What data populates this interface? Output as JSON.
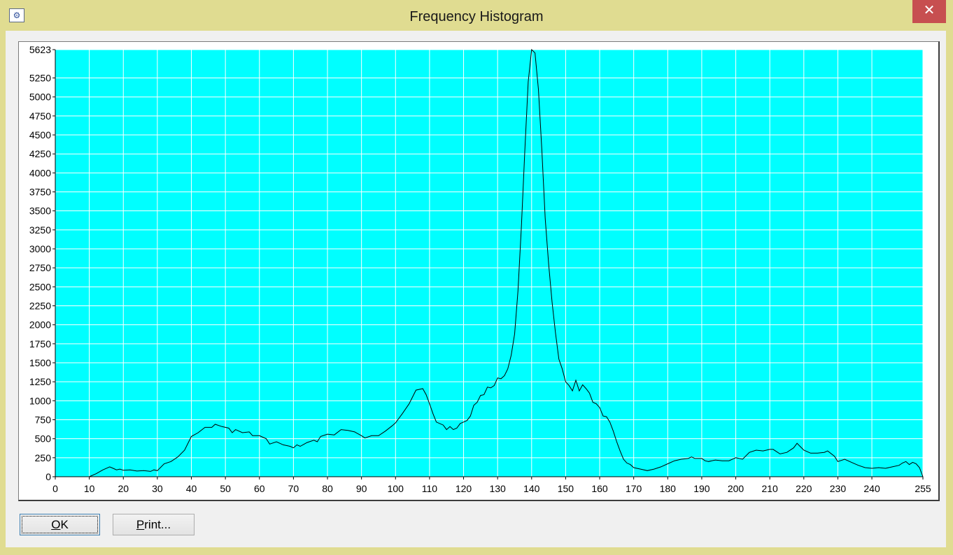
{
  "window": {
    "title": "Frequency Histogram",
    "close_glyph": "✕",
    "icon": "app-icon"
  },
  "buttons": {
    "ok_accel": "O",
    "ok_rest": "K",
    "print_accel": "P",
    "print_rest": "rint..."
  },
  "colors": {
    "plot_background": "#00ffff",
    "grid": "#ffffff",
    "line": "#000000"
  },
  "chart_data": {
    "type": "line",
    "title": "",
    "xlabel": "",
    "ylabel": "",
    "xlim": [
      0,
      255
    ],
    "ylim": [
      0,
      5623
    ],
    "grid": true,
    "x_ticks": [
      0,
      10,
      20,
      30,
      40,
      50,
      60,
      70,
      80,
      90,
      100,
      110,
      120,
      130,
      140,
      150,
      160,
      170,
      180,
      190,
      200,
      210,
      220,
      230,
      240,
      255
    ],
    "y_ticks": [
      0,
      250,
      500,
      750,
      1000,
      1250,
      1500,
      1750,
      2000,
      2250,
      2500,
      2750,
      3000,
      3250,
      3500,
      3750,
      4000,
      4250,
      4500,
      4750,
      5000,
      5250,
      5623
    ],
    "series": [
      {
        "points": [
          [
            0,
            0
          ],
          [
            10,
            0
          ],
          [
            12,
            40
          ],
          [
            14,
            90
          ],
          [
            16,
            130
          ],
          [
            17,
            110
          ],
          [
            18,
            90
          ],
          [
            19,
            100
          ],
          [
            20,
            85
          ],
          [
            22,
            90
          ],
          [
            24,
            75
          ],
          [
            26,
            80
          ],
          [
            28,
            70
          ],
          [
            29,
            90
          ],
          [
            30,
            80
          ],
          [
            32,
            170
          ],
          [
            34,
            200
          ],
          [
            36,
            260
          ],
          [
            38,
            350
          ],
          [
            40,
            530
          ],
          [
            42,
            580
          ],
          [
            44,
            650
          ],
          [
            46,
            650
          ],
          [
            47,
            690
          ],
          [
            49,
            660
          ],
          [
            51,
            640
          ],
          [
            52,
            580
          ],
          [
            53,
            620
          ],
          [
            55,
            580
          ],
          [
            57,
            590
          ],
          [
            58,
            540
          ],
          [
            60,
            540
          ],
          [
            61,
            520
          ],
          [
            62,
            500
          ],
          [
            63,
            430
          ],
          [
            65,
            460
          ],
          [
            67,
            420
          ],
          [
            69,
            400
          ],
          [
            70,
            380
          ],
          [
            71,
            420
          ],
          [
            72,
            400
          ],
          [
            74,
            450
          ],
          [
            76,
            480
          ],
          [
            77,
            460
          ],
          [
            78,
            530
          ],
          [
            80,
            560
          ],
          [
            82,
            550
          ],
          [
            84,
            620
          ],
          [
            86,
            610
          ],
          [
            88,
            590
          ],
          [
            90,
            540
          ],
          [
            91,
            510
          ],
          [
            93,
            540
          ],
          [
            95,
            540
          ],
          [
            97,
            600
          ],
          [
            99,
            670
          ],
          [
            100,
            710
          ],
          [
            102,
            830
          ],
          [
            104,
            960
          ],
          [
            106,
            1140
          ],
          [
            108,
            1160
          ],
          [
            109,
            1080
          ],
          [
            110,
            960
          ],
          [
            111,
            830
          ],
          [
            112,
            720
          ],
          [
            114,
            680
          ],
          [
            115,
            620
          ],
          [
            116,
            660
          ],
          [
            117,
            620
          ],
          [
            118,
            640
          ],
          [
            119,
            700
          ],
          [
            120,
            720
          ],
          [
            121,
            740
          ],
          [
            122,
            800
          ],
          [
            123,
            940
          ],
          [
            124,
            980
          ],
          [
            125,
            1070
          ],
          [
            126,
            1080
          ],
          [
            127,
            1180
          ],
          [
            128,
            1170
          ],
          [
            129,
            1200
          ],
          [
            130,
            1300
          ],
          [
            131,
            1290
          ],
          [
            132,
            1330
          ],
          [
            133,
            1420
          ],
          [
            134,
            1600
          ],
          [
            135,
            1880
          ],
          [
            136,
            2450
          ],
          [
            137,
            3300
          ],
          [
            138,
            4300
          ],
          [
            139,
            5200
          ],
          [
            140,
            5623
          ],
          [
            141,
            5580
          ],
          [
            142,
            5100
          ],
          [
            143,
            4300
          ],
          [
            144,
            3400
          ],
          [
            145,
            2800
          ],
          [
            146,
            2300
          ],
          [
            147,
            1900
          ],
          [
            148,
            1550
          ],
          [
            149,
            1420
          ],
          [
            150,
            1250
          ],
          [
            151,
            1200
          ],
          [
            152,
            1130
          ],
          [
            153,
            1270
          ],
          [
            154,
            1130
          ],
          [
            155,
            1210
          ],
          [
            156,
            1160
          ],
          [
            157,
            1100
          ],
          [
            158,
            980
          ],
          [
            159,
            960
          ],
          [
            160,
            910
          ],
          [
            161,
            800
          ],
          [
            162,
            790
          ],
          [
            163,
            720
          ],
          [
            164,
            600
          ],
          [
            165,
            460
          ],
          [
            166,
            340
          ],
          [
            167,
            230
          ],
          [
            168,
            180
          ],
          [
            169,
            160
          ],
          [
            170,
            120
          ],
          [
            172,
            100
          ],
          [
            174,
            80
          ],
          [
            176,
            100
          ],
          [
            178,
            130
          ],
          [
            180,
            170
          ],
          [
            182,
            210
          ],
          [
            184,
            230
          ],
          [
            186,
            240
          ],
          [
            187,
            260
          ],
          [
            188,
            240
          ],
          [
            190,
            240
          ],
          [
            191,
            210
          ],
          [
            192,
            200
          ],
          [
            194,
            220
          ],
          [
            196,
            210
          ],
          [
            198,
            210
          ],
          [
            200,
            250
          ],
          [
            202,
            230
          ],
          [
            204,
            320
          ],
          [
            206,
            350
          ],
          [
            208,
            340
          ],
          [
            210,
            360
          ],
          [
            211,
            360
          ],
          [
            213,
            300
          ],
          [
            215,
            320
          ],
          [
            217,
            380
          ],
          [
            218,
            440
          ],
          [
            220,
            350
          ],
          [
            222,
            310
          ],
          [
            224,
            310
          ],
          [
            226,
            320
          ],
          [
            227,
            340
          ],
          [
            229,
            270
          ],
          [
            230,
            200
          ],
          [
            232,
            230
          ],
          [
            234,
            190
          ],
          [
            236,
            150
          ],
          [
            238,
            120
          ],
          [
            240,
            110
          ],
          [
            242,
            120
          ],
          [
            244,
            110
          ],
          [
            246,
            130
          ],
          [
            248,
            150
          ],
          [
            249,
            180
          ],
          [
            250,
            200
          ],
          [
            251,
            160
          ],
          [
            252,
            190
          ],
          [
            253,
            170
          ],
          [
            254,
            120
          ],
          [
            255,
            0
          ]
        ]
      }
    ]
  }
}
